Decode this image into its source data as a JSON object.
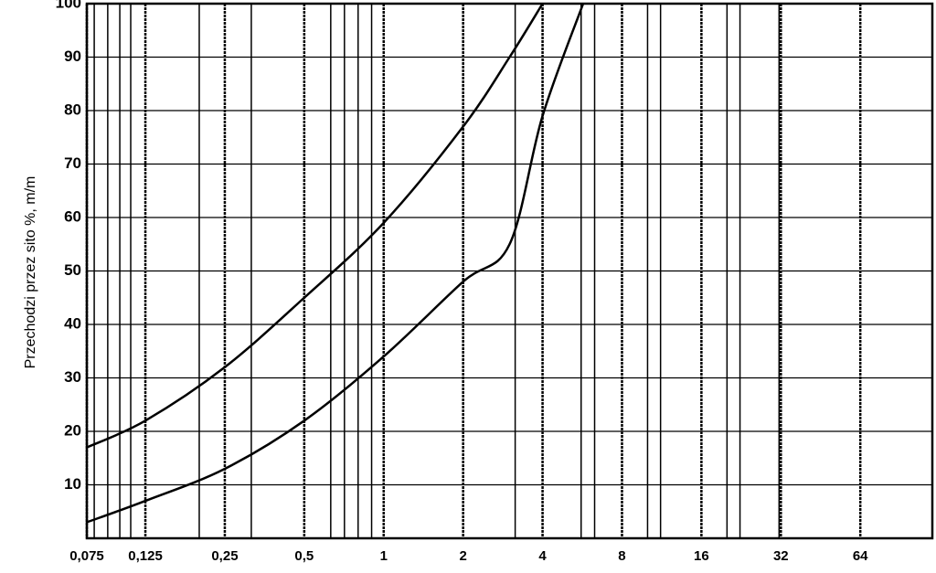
{
  "chart_data": {
    "type": "line",
    "ylabel": "Przechodzi przez sito %, m/m",
    "xscale": "log",
    "xlim": [
      0.075,
      120
    ],
    "ylim": [
      0,
      100
    ],
    "xticks": [
      {
        "value": 0.075,
        "label": "0,075"
      },
      {
        "value": 0.125,
        "label": "0,125"
      },
      {
        "value": 0.25,
        "label": "0,25"
      },
      {
        "value": 0.5,
        "label": "0,5"
      },
      1,
      2,
      4,
      8,
      16,
      32,
      64
    ],
    "x_minor_grid": [
      0.08,
      0.09,
      0.1,
      0.11,
      0.2,
      0.315,
      0.63,
      0.71,
      0.8,
      0.9,
      3.15,
      5.6,
      6.3,
      10,
      11.2,
      20,
      22.4,
      31.5
    ],
    "yticks": [
      10,
      20,
      30,
      40,
      50,
      60,
      70,
      80,
      90,
      100
    ],
    "grid": true,
    "color": "#000000",
    "series": [
      {
        "x": [
          0.075,
          0.125,
          0.25,
          0.5,
          1,
          2,
          3,
          4
        ],
        "values": [
          17,
          22,
          32,
          45,
          59,
          77,
          90,
          100
        ]
      },
      {
        "x": [
          0.075,
          0.125,
          0.25,
          0.5,
          1,
          2,
          3,
          4,
          5.7
        ],
        "values": [
          3,
          7,
          13,
          22,
          34,
          48,
          55,
          79,
          100
        ]
      }
    ]
  }
}
